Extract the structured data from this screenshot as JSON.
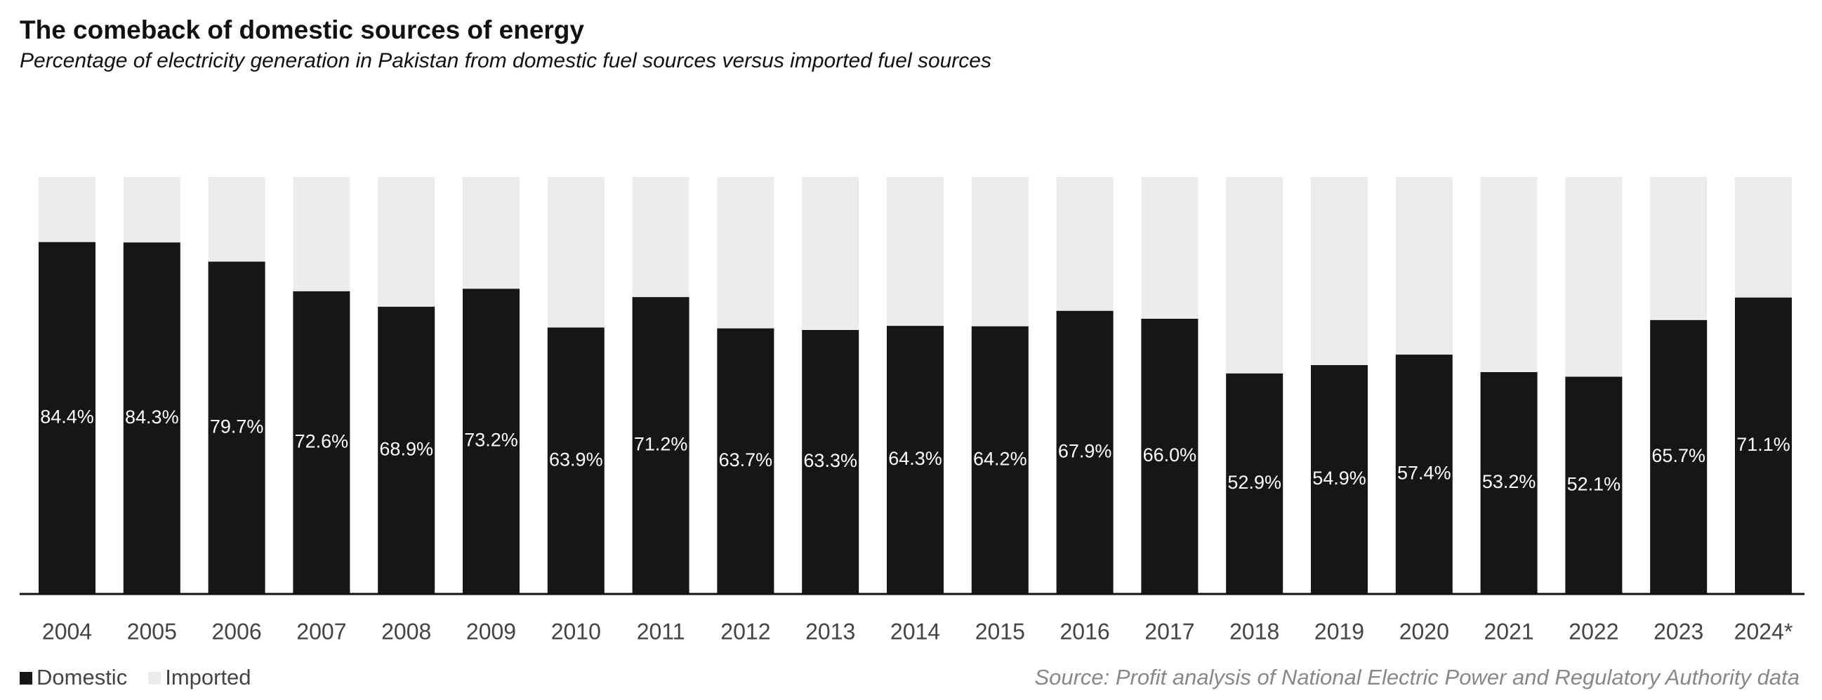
{
  "chart_data": {
    "type": "stacked_bar",
    "title": "The comeback of domestic sources of energy",
    "subtitle": "Percentage of electricity generation in Pakistan from domestic fuel sources versus imported fuel sources",
    "source": "Source: Profit analysis of National Electric Power and Regulatory Authority data",
    "categories": [
      "2004",
      "2005",
      "2006",
      "2007",
      "2008",
      "2009",
      "2010",
      "2011",
      "2012",
      "2013",
      "2014",
      "2015",
      "2016",
      "2017",
      "2018",
      "2019",
      "2020",
      "2021",
      "2022",
      "2023",
      "2024*"
    ],
    "series": [
      {
        "name": "Domestic",
        "color": "#161616",
        "values": [
          84.4,
          84.3,
          79.7,
          72.6,
          68.9,
          73.2,
          63.9,
          71.2,
          63.7,
          63.3,
          64.3,
          64.2,
          67.9,
          66.0,
          52.9,
          54.9,
          57.4,
          53.2,
          52.1,
          65.7,
          71.1
        ],
        "value_labels": [
          "84.4%",
          "84.3%",
          "79.7%",
          "72.6%",
          "68.9%",
          "73.2%",
          "63.9%",
          "71.2%",
          "63.7%",
          "63.3%",
          "64.3%",
          "64.2%",
          "67.9%",
          "66.0%",
          "52.9%",
          "54.9%",
          "57.4%",
          "53.2%",
          "52.1%",
          "65.7%",
          "71.1%"
        ]
      },
      {
        "name": "Imported",
        "color": "#ececec",
        "values": [
          15.6,
          15.7,
          20.3,
          27.4,
          31.1,
          26.8,
          36.1,
          28.8,
          36.3,
          36.7,
          35.7,
          35.8,
          32.1,
          34.0,
          47.1,
          45.1,
          42.6,
          46.8,
          47.9,
          34.3,
          28.9
        ]
      }
    ],
    "ylim": [
      0,
      100
    ],
    "legend": "bottom-left"
  }
}
